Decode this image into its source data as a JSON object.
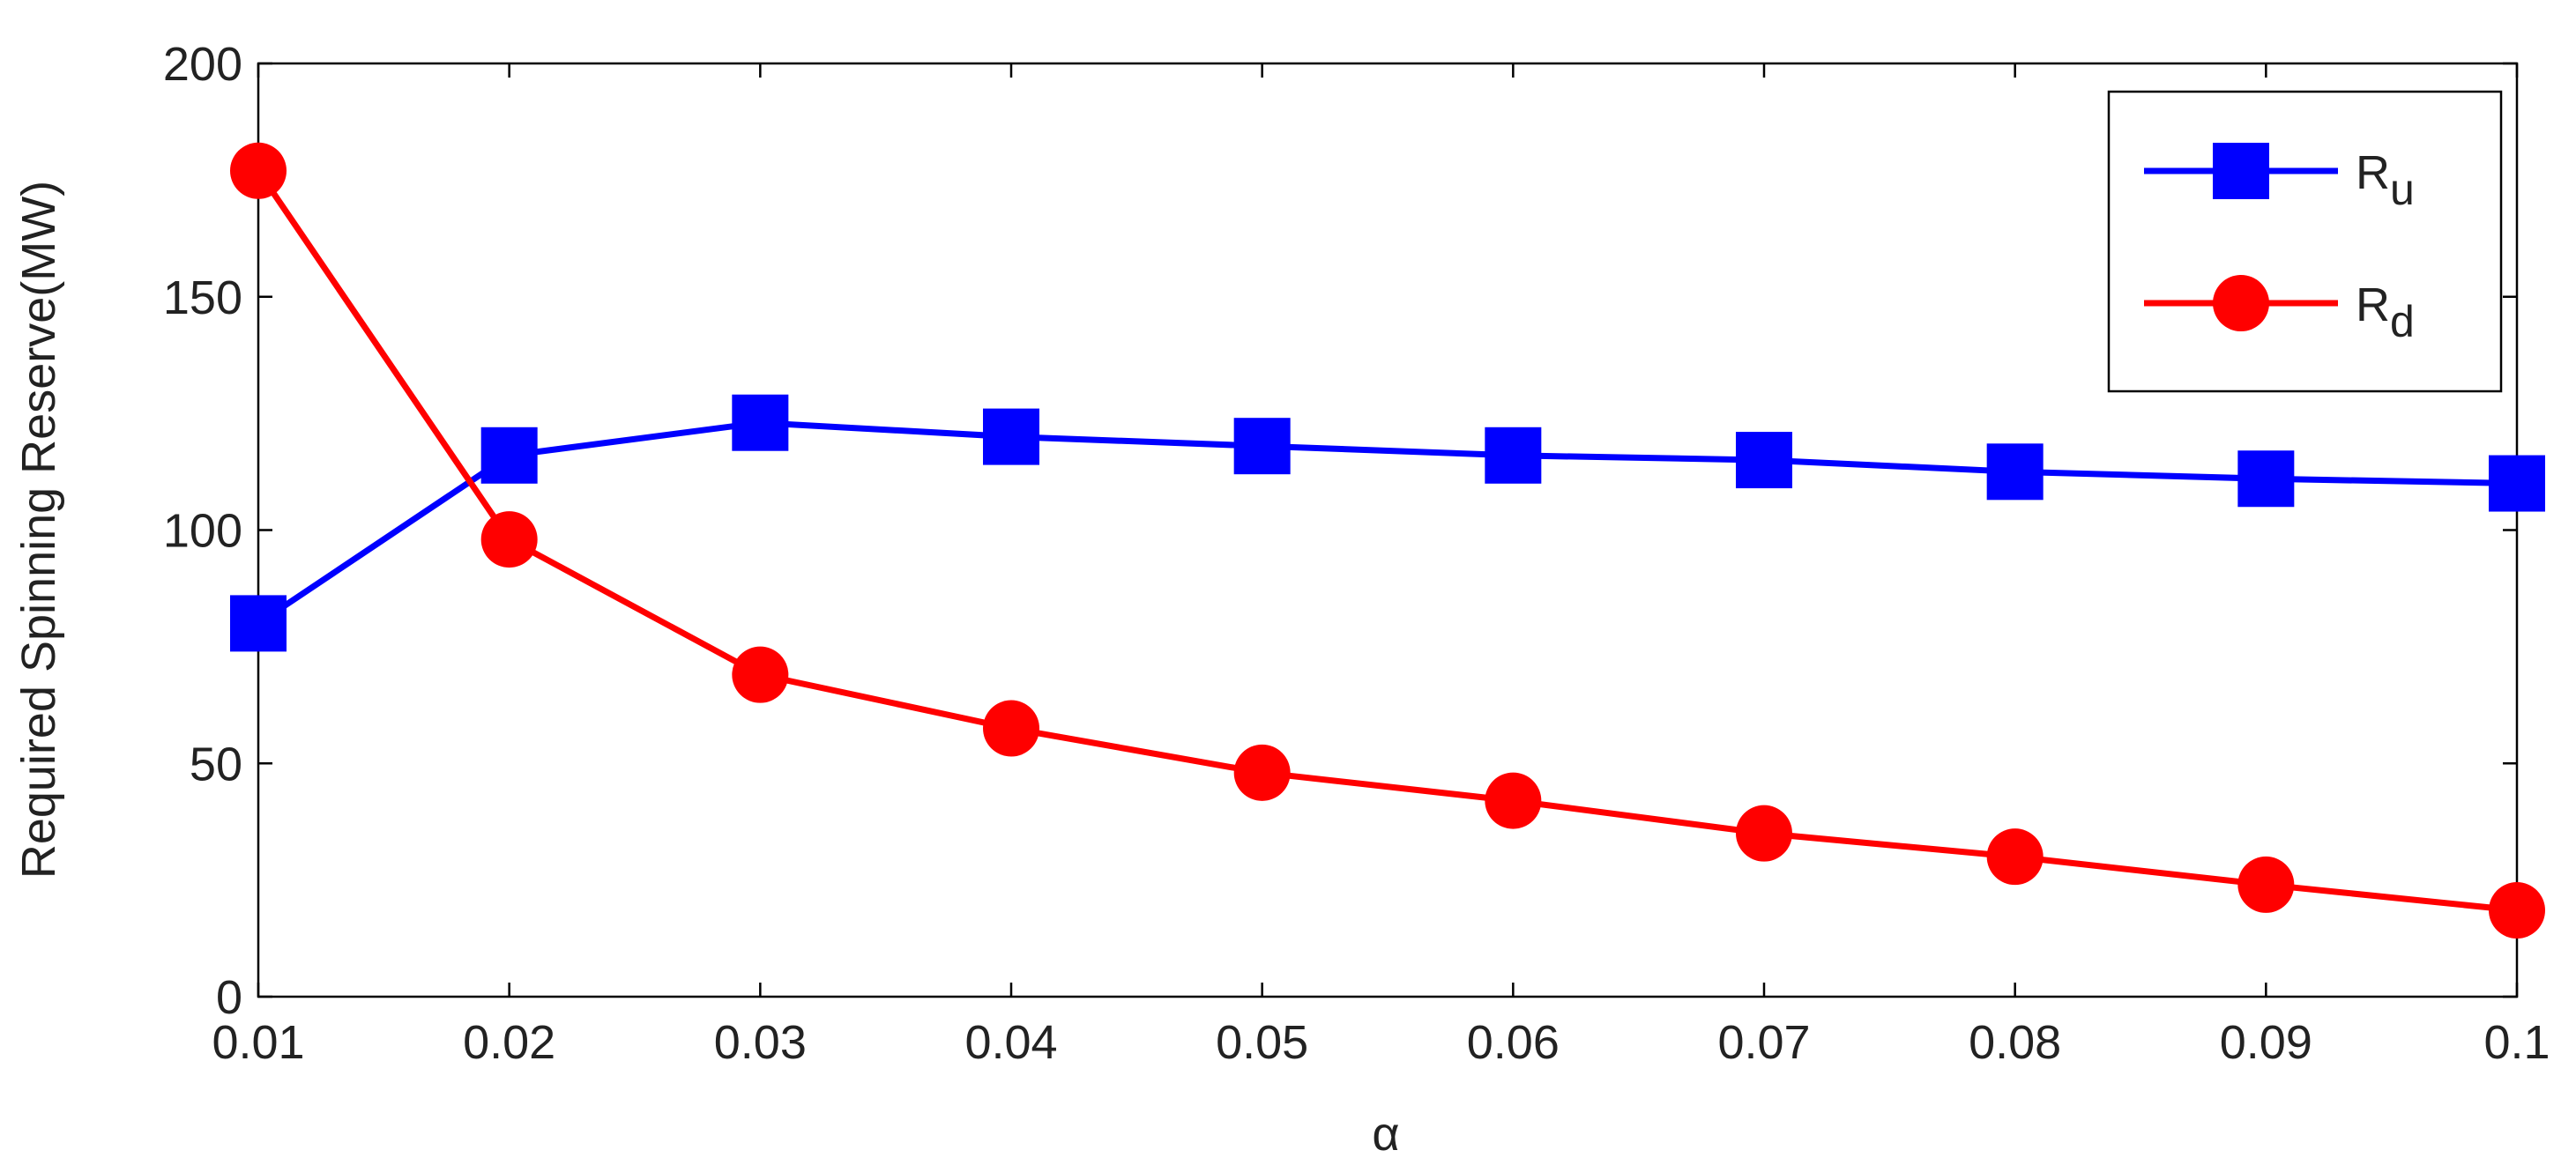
{
  "chart_data": {
    "type": "line",
    "x_label": "α",
    "y_label": "Required Spinning Reserve(MW)",
    "x": [
      0.01,
      0.02,
      0.03,
      0.04,
      0.05,
      0.06,
      0.07,
      0.08,
      0.09,
      0.1
    ],
    "series": [
      {
        "name": "Ru",
        "color": "#0000ff",
        "marker": "square",
        "values": [
          80,
          116,
          123,
          120,
          118,
          116,
          115,
          112.5,
          111,
          110
        ]
      },
      {
        "name": "Rd",
        "color": "#ff0000",
        "marker": "circle",
        "values": [
          177,
          98,
          69,
          57.5,
          48,
          42,
          35,
          30,
          24,
          18.5
        ]
      }
    ],
    "xlim": [
      0.01,
      0.1
    ],
    "xticks": [
      0.01,
      0.02,
      0.03,
      0.04,
      0.05,
      0.06,
      0.07,
      0.08,
      0.09,
      0.1
    ],
    "ylim": [
      0,
      200
    ],
    "yticks": [
      0,
      50,
      100,
      150,
      200
    ],
    "legend": "upper right",
    "grid": false
  }
}
